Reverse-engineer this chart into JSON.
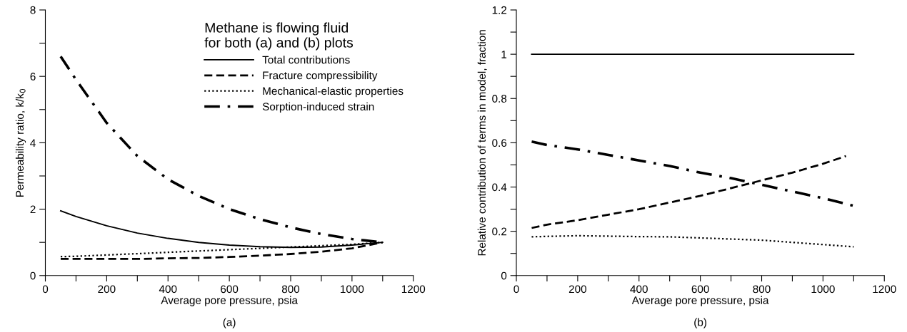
{
  "chart_data": [
    {
      "type": "line",
      "xlabel": "Average pore pressure, psia",
      "ylabel": "Permeability ratio, k/k$_{0}$",
      "annotations": [
        "(a)"
      ],
      "legend_title": "Methane is flowing fluid\nfor both (a) and (b) plots",
      "legend": "top right",
      "grid": false,
      "marker": "none",
      "x": [
        50,
        100,
        200,
        300,
        400,
        500,
        600,
        700,
        800,
        900,
        1000,
        1100
      ],
      "xlim": [
        0,
        1200
      ],
      "xticks": [
        0,
        {
          "value": 100,
          "label": null
        },
        200,
        {
          "value": 300,
          "label": null
        },
        400,
        {
          "value": 500,
          "label": null
        },
        600,
        {
          "value": 700,
          "label": null
        },
        800,
        {
          "value": 900,
          "label": null
        },
        1000,
        {
          "value": 1100,
          "label": null
        },
        1200
      ],
      "ylim": [
        0,
        8
      ],
      "yticks": [
        0,
        {
          "value": 1,
          "label": null
        },
        2,
        {
          "value": 3,
          "label": null
        },
        4,
        {
          "value": 5,
          "label": null
        },
        6,
        {
          "value": 7,
          "label": null
        },
        8
      ],
      "series": [
        {
          "name": "Total contributions",
          "color": "#000000",
          "line_style": "solid",
          "values": [
            1.95,
            1.78,
            1.5,
            1.28,
            1.12,
            1.0,
            0.92,
            0.87,
            0.85,
            0.86,
            0.92,
            1.0
          ]
        },
        {
          "name": "Fracture compressibility",
          "color": "#000000",
          "line_style": "dashed",
          "values": [
            0.5,
            0.5,
            0.5,
            0.5,
            0.52,
            0.53,
            0.56,
            0.6,
            0.65,
            0.72,
            0.82,
            1.0
          ]
        },
        {
          "name": "Mechanical-elastic properties",
          "color": "#000000",
          "line_style": "dotted",
          "values": [
            0.57,
            0.58,
            0.62,
            0.66,
            0.7,
            0.74,
            0.78,
            0.82,
            0.86,
            0.9,
            0.94,
            1.0
          ]
        },
        {
          "name": "Sorption-induced strain",
          "color": "#000000",
          "line_style": "dashdot",
          "values": [
            6.6,
            5.9,
            4.6,
            3.6,
            2.9,
            2.4,
            2.0,
            1.7,
            1.45,
            1.25,
            1.1,
            1.0
          ]
        }
      ]
    },
    {
      "type": "line",
      "xlabel": "Average pore pressure, psia",
      "ylabel": "Relative contribution of terms in model, fraction",
      "annotations": [
        "(b)"
      ],
      "grid": false,
      "marker": "none",
      "x": [
        50,
        100,
        200,
        300,
        400,
        500,
        600,
        700,
        800,
        900,
        1000,
        1100
      ],
      "xlim": [
        0,
        1200
      ],
      "xticks": [
        0,
        {
          "value": 100,
          "label": null
        },
        200,
        {
          "value": 300,
          "label": null
        },
        400,
        {
          "value": 500,
          "label": null
        },
        600,
        {
          "value": 700,
          "label": null
        },
        800,
        {
          "value": 900,
          "label": null
        },
        1000,
        {
          "value": 1100,
          "label": null
        },
        1200
      ],
      "ylim": [
        0,
        1.2
      ],
      "yticks": [
        0,
        {
          "value": 0.1,
          "label": null
        },
        0.2,
        {
          "value": 0.3,
          "label": null
        },
        0.4,
        {
          "value": 0.5,
          "label": null
        },
        0.6,
        {
          "value": 0.7,
          "label": null
        },
        0.8,
        {
          "value": 0.9,
          "label": null
        },
        1,
        {
          "value": 1.1,
          "label": null
        },
        1.2
      ],
      "series": [
        {
          "color": "#000000",
          "line_style": "solid",
          "values": [
            1,
            1,
            1,
            1,
            1,
            1,
            1,
            1,
            1,
            1,
            1,
            1
          ]
        },
        {
          "color": "#000000",
          "line_style": "dashed",
          "x": [
            50,
            100,
            200,
            300,
            400,
            500,
            600,
            700,
            800,
            900,
            1000,
            1075
          ],
          "values": [
            0.215,
            0.23,
            0.25,
            0.275,
            0.3,
            0.33,
            0.36,
            0.395,
            0.43,
            0.465,
            0.505,
            0.54
          ]
        },
        {
          "color": "#000000",
          "line_style": "dotted",
          "values": [
            0.175,
            0.177,
            0.18,
            0.178,
            0.176,
            0.175,
            0.17,
            0.165,
            0.16,
            0.15,
            0.14,
            0.13
          ]
        },
        {
          "color": "#000000",
          "line_style": "dashdot",
          "values": [
            0.605,
            0.59,
            0.57,
            0.545,
            0.52,
            0.495,
            0.465,
            0.44,
            0.41,
            0.38,
            0.35,
            0.315
          ]
        }
      ]
    }
  ]
}
